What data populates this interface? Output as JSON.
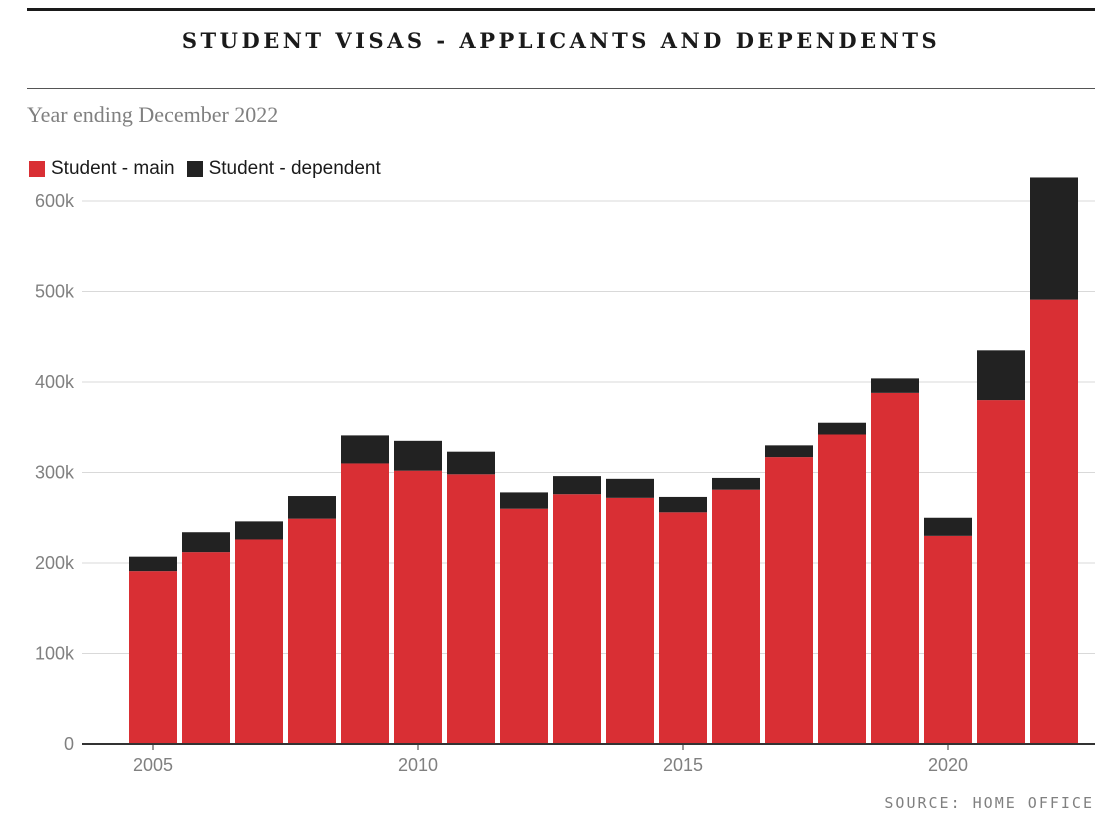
{
  "chart_data": {
    "type": "bar",
    "stacked": true,
    "title": "STUDENT VISAS - APPLICANTS AND DEPENDENTS",
    "subtitle": "Year ending December 2022",
    "source": "SOURCE: HOME OFFICE",
    "x": [
      2005,
      2006,
      2007,
      2008,
      2009,
      2010,
      2011,
      2012,
      2013,
      2014,
      2015,
      2016,
      2017,
      2018,
      2019,
      2020,
      2021,
      2022
    ],
    "series": [
      {
        "name": "Student - main",
        "color": "#d92f34",
        "values": [
          191000,
          212000,
          226000,
          249000,
          310000,
          302000,
          298000,
          260000,
          276000,
          272000,
          256000,
          281000,
          317000,
          342000,
          388000,
          230000,
          380000,
          491000
        ]
      },
      {
        "name": "Student - dependent",
        "color": "#222222",
        "values": [
          16000,
          22000,
          20000,
          25000,
          31000,
          33000,
          25000,
          18000,
          20000,
          21000,
          17000,
          13000,
          13000,
          13000,
          16000,
          20000,
          55000,
          135000
        ]
      }
    ],
    "ylim": [
      0,
      600000
    ],
    "yticks": [
      0,
      100000,
      200000,
      300000,
      400000,
      500000,
      600000
    ],
    "ytick_labels": [
      "0",
      "100k",
      "200k",
      "300k",
      "400k",
      "500k",
      "600k"
    ],
    "xticks": [
      2005,
      2010,
      2015,
      2020
    ],
    "xtick_labels": [
      "2005",
      "2010",
      "2015",
      "2020"
    ],
    "grid": "horizontal",
    "legend": "top-left"
  }
}
